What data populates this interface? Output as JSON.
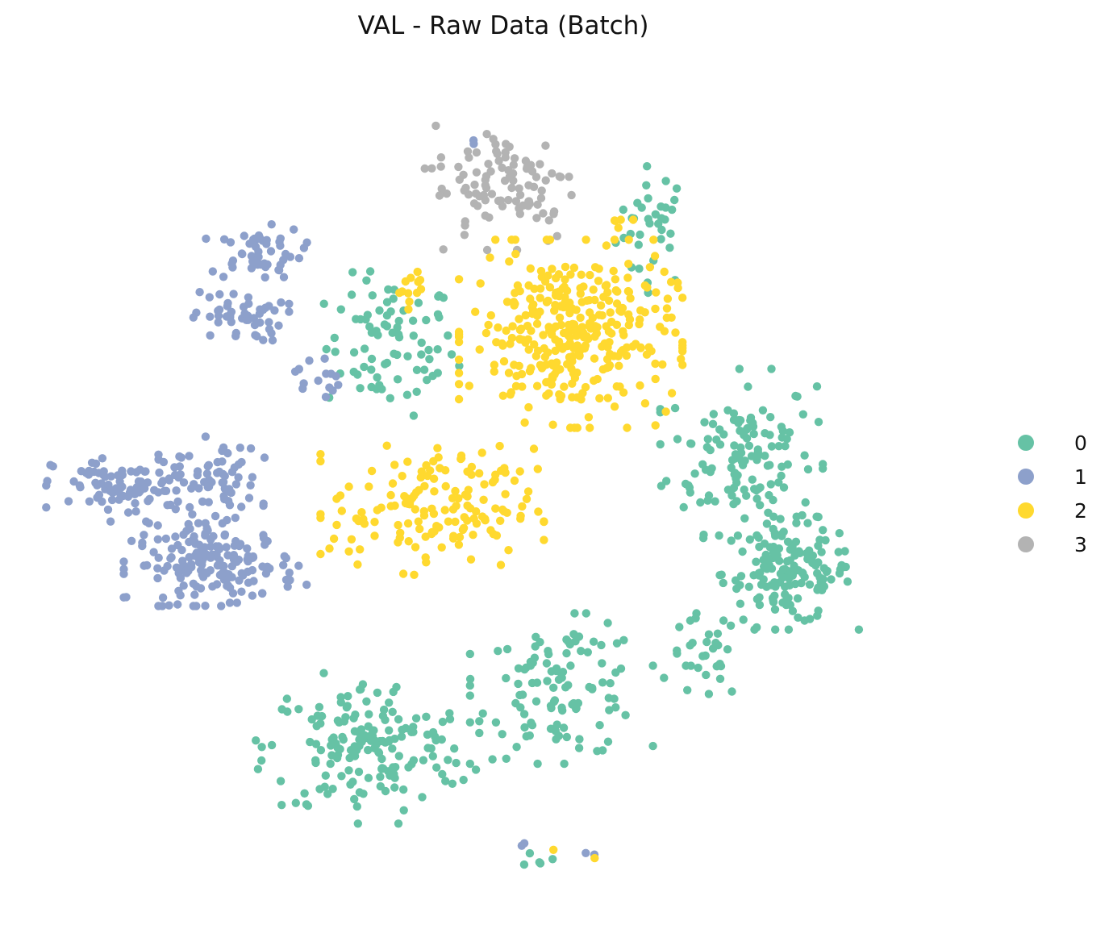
{
  "chart_data": {
    "type": "scatter",
    "title": "VAL - Raw Data (Batch)",
    "xlabel": "",
    "ylabel": "",
    "axes_visible": false,
    "grid": false,
    "xlim": [
      0,
      100
    ],
    "ylim": [
      0,
      100
    ],
    "legend_position": "right",
    "series": [
      {
        "name": "0",
        "color": "#66c2a5",
        "clusters": [
          {
            "cx": 66.0,
            "cy": 81.0,
            "sx": 2.0,
            "sy": 3.5,
            "n": 35
          },
          {
            "cx": 37.5,
            "cy": 67.0,
            "sx": 3.5,
            "sy": 4.0,
            "n": 80
          },
          {
            "cx": 75.5,
            "cy": 54.5,
            "sx": 4.0,
            "sy": 4.5,
            "n": 130
          },
          {
            "cx": 80.5,
            "cy": 40.5,
            "sx": 3.5,
            "sy": 3.0,
            "n": 150
          },
          {
            "cx": 71.5,
            "cy": 30.5,
            "sx": 2.0,
            "sy": 2.5,
            "n": 30
          },
          {
            "cx": 56.0,
            "cy": 27.0,
            "sx": 4.5,
            "sy": 4.0,
            "n": 110
          },
          {
            "cx": 35.0,
            "cy": 20.0,
            "sx": 5.5,
            "sy": 4.0,
            "n": 170
          },
          {
            "cx": 53.5,
            "cy": 7.0,
            "sx": 0.7,
            "sy": 0.5,
            "n": 5
          }
        ]
      },
      {
        "name": "1",
        "color": "#8da0cb",
        "clusters": [
          {
            "cx": 46.5,
            "cy": 91.0,
            "sx": 0.3,
            "sy": 0.3,
            "n": 2
          },
          {
            "cx": 23.0,
            "cy": 78.0,
            "sx": 2.5,
            "sy": 1.5,
            "n": 50
          },
          {
            "cx": 21.0,
            "cy": 70.5,
            "sx": 2.5,
            "sy": 1.5,
            "n": 50
          },
          {
            "cx": 29.5,
            "cy": 63.5,
            "sx": 1.2,
            "sy": 1.5,
            "n": 15
          },
          {
            "cx": 9.0,
            "cy": 50.5,
            "sx": 4.0,
            "sy": 1.8,
            "n": 100
          },
          {
            "cx": 19.0,
            "cy": 51.0,
            "sx": 2.2,
            "sy": 2.5,
            "n": 60
          },
          {
            "cx": 18.5,
            "cy": 41.5,
            "sx": 4.5,
            "sy": 2.2,
            "n": 170
          },
          {
            "cx": 51.5,
            "cy": 8.5,
            "sx": 0.3,
            "sy": 0.3,
            "n": 2
          },
          {
            "cx": 59.0,
            "cy": 7.5,
            "sx": 0.3,
            "sy": 0.3,
            "n": 2
          }
        ]
      },
      {
        "name": "2",
        "color": "#ffd92f",
        "clusters": [
          {
            "cx": 62.0,
            "cy": 82.0,
            "sx": 0.8,
            "sy": 0.5,
            "n": 5
          },
          {
            "cx": 39.5,
            "cy": 74.0,
            "sx": 0.8,
            "sy": 1.2,
            "n": 12
          },
          {
            "cx": 57.0,
            "cy": 68.5,
            "sx": 5.5,
            "sy": 5.0,
            "n": 340
          },
          {
            "cx": 42.0,
            "cy": 48.0,
            "sx": 5.5,
            "sy": 3.5,
            "n": 150
          },
          {
            "cx": 49.5,
            "cy": 53.0,
            "sx": 2.0,
            "sy": 1.0,
            "n": 5
          },
          {
            "cx": 55.0,
            "cy": 7.5,
            "sx": 0.3,
            "sy": 0.3,
            "n": 1
          },
          {
            "cx": 59.5,
            "cy": 7.0,
            "sx": 0.3,
            "sy": 0.3,
            "n": 1
          }
        ]
      },
      {
        "name": "3",
        "color": "#b3b3b3",
        "clusters": [
          {
            "cx": 50.0,
            "cy": 86.0,
            "sx": 4.0,
            "sy": 3.5,
            "n": 100
          }
        ]
      }
    ]
  }
}
